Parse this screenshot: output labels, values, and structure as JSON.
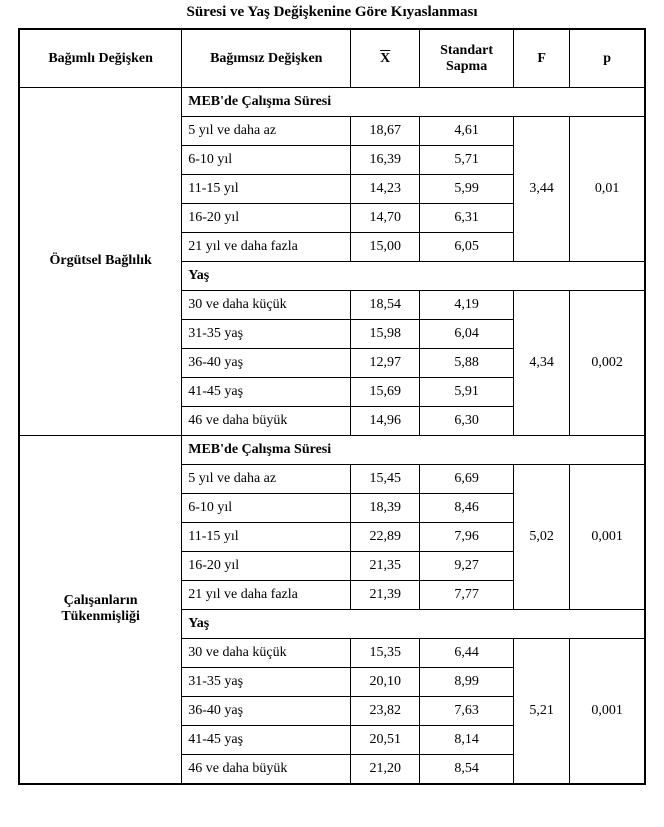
{
  "title_line1": "Süresi ve Yaş Değişkenine Göre Kıyaslanması",
  "headers": {
    "dep": "Bağımlı Değişken",
    "indep": "Bağımsız Değişken",
    "xbar": "X",
    "sd": "Standart Sapma",
    "F": "F",
    "p": "p"
  },
  "sections": [
    {
      "depvar": "Örgütsel Bağlılık",
      "blocks": [
        {
          "label": "MEB'de Çalışma Süresi",
          "F": "3,44",
          "p": "0,01",
          "rows": [
            {
              "cat": "5 yıl ve daha az",
              "mean": "18,67",
              "sd": "4,61"
            },
            {
              "cat": "6-10 yıl",
              "mean": "16,39",
              "sd": "5,71"
            },
            {
              "cat": "11-15 yıl",
              "mean": "14,23",
              "sd": "5,99"
            },
            {
              "cat": "16-20 yıl",
              "mean": "14,70",
              "sd": "6,31"
            },
            {
              "cat": "21 yıl ve daha fazla",
              "mean": "15,00",
              "sd": "6,05"
            }
          ]
        },
        {
          "label": "Yaş",
          "F": "4,34",
          "p": "0,002",
          "rows": [
            {
              "cat": "30 ve daha küçük",
              "mean": "18,54",
              "sd": "4,19"
            },
            {
              "cat": "31-35 yaş",
              "mean": "15,98",
              "sd": "6,04"
            },
            {
              "cat": "36-40 yaş",
              "mean": "12,97",
              "sd": "5,88"
            },
            {
              "cat": "41-45 yaş",
              "mean": "15,69",
              "sd": "5,91"
            },
            {
              "cat": "46 ve daha büyük",
              "mean": "14,96",
              "sd": "6,30"
            }
          ]
        }
      ]
    },
    {
      "depvar": "Çalışanların Tükenmişliği",
      "blocks": [
        {
          "label": "MEB'de Çalışma Süresi",
          "F": "5,02",
          "p": "0,001",
          "rows": [
            {
              "cat": "5 yıl ve daha az",
              "mean": "15,45",
              "sd": "6,69"
            },
            {
              "cat": "6-10 yıl",
              "mean": "18,39",
              "sd": "8,46"
            },
            {
              "cat": "11-15 yıl",
              "mean": "22,89",
              "sd": "7,96"
            },
            {
              "cat": "16-20 yıl",
              "mean": "21,35",
              "sd": "9,27"
            },
            {
              "cat": "21 yıl ve daha fazla",
              "mean": "21,39",
              "sd": "7,77"
            }
          ]
        },
        {
          "label": "Yaş",
          "F": "5,21",
          "p": "0,001",
          "rows": [
            {
              "cat": "30 ve daha küçük",
              "mean": "15,35",
              "sd": "6,44"
            },
            {
              "cat": "31-35 yaş",
              "mean": "20,10",
              "sd": "8,99"
            },
            {
              "cat": "36-40 yaş",
              "mean": "23,82",
              "sd": "7,63"
            },
            {
              "cat": "41-45 yaş",
              "mean": "20,51",
              "sd": "8,14"
            },
            {
              "cat": "46 ve daha büyük",
              "mean": "21,20",
              "sd": "8,54"
            }
          ]
        }
      ]
    }
  ]
}
